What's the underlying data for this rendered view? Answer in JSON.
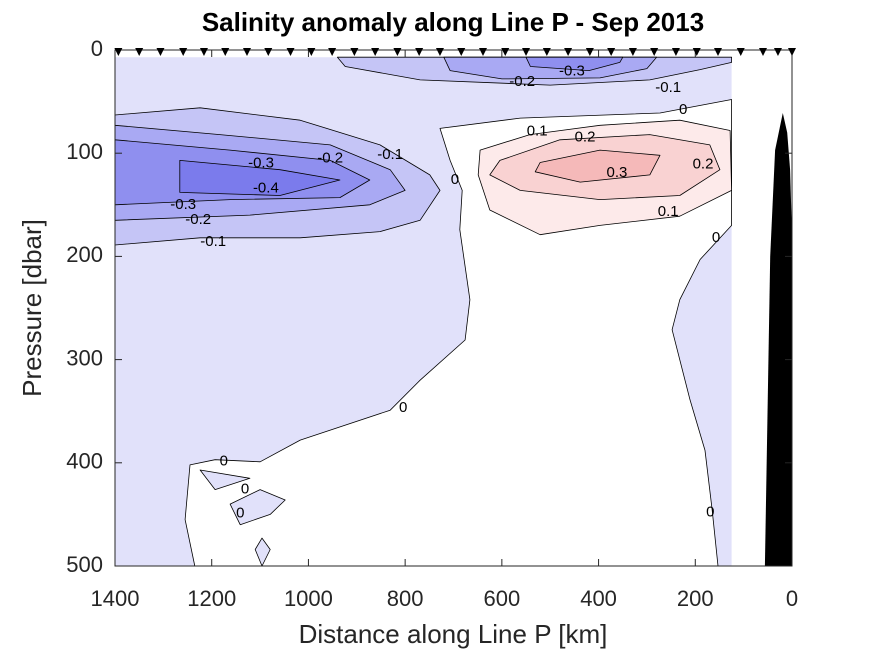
{
  "chart_data": {
    "type": "contour",
    "title": "Salinity anomaly along Line P - Sep 2013",
    "xlabel": "Distance along Line P [km]",
    "ylabel": "Pressure [dbar]",
    "xlim": [
      0,
      1400
    ],
    "x_reversed": true,
    "xticks": [
      0,
      200,
      400,
      600,
      800,
      1000,
      1200,
      1400
    ],
    "ylim": [
      0,
      500
    ],
    "y_reversed": true,
    "yticks": [
      0,
      100,
      200,
      300,
      400,
      500
    ],
    "levels": [
      -0.5,
      -0.4,
      -0.3,
      -0.2,
      -0.1,
      0,
      0.1,
      0.2,
      0.3
    ],
    "level_colors": [
      "#7b7bec",
      "#8f8fef",
      "#a9a9f3",
      "#c5c5f6",
      "#e1e1fa",
      "#ffffff",
      "#fdeaea",
      "#f9d2d2",
      "#f5b9b9"
    ],
    "regions": [
      {
        "level": -0.1,
        "x": [
          1400,
          125,
          125,
          1400
        ],
        "y": [
          7,
          7,
          500,
          500
        ]
      },
      {
        "level": 0,
        "x": [
          728,
          562,
          273,
          125,
          125,
          190,
          232,
          248,
          211,
          180,
          165,
          153,
          1235,
          1255,
          1245,
          1193,
          1100,
          1017,
          831,
          769,
          676,
          666,
          687,
          682,
          707
        ],
        "y": [
          76,
          66,
          61,
          48,
          170,
          203,
          242,
          271,
          339,
          388,
          446,
          500,
          500,
          455,
          402,
          397,
          399,
          378,
          349,
          320,
          281,
          242,
          174,
          136,
          107
        ]
      },
      {
        "level": -0.1,
        "x": [
          1100,
          1048,
          1079,
          1141,
          1162
        ],
        "y": [
          426,
          436,
          450,
          460,
          440
        ]
      },
      {
        "level": -0.1,
        "x": [
          1096,
          1079,
          1096,
          1110
        ],
        "y": [
          473,
          484,
          500,
          484
        ]
      },
      {
        "level": -0.1,
        "x": [
          1224,
          1121,
          1193
        ],
        "y": [
          407,
          415,
          426
        ]
      },
      {
        "level": -0.2,
        "x": [
          940,
          924,
          769,
          500,
          294,
          190,
          125,
          125
        ],
        "y": [
          7,
          16,
          29,
          34,
          29,
          19,
          12,
          7
        ]
      },
      {
        "level": -0.3,
        "x": [
          720,
          707,
          600,
          397,
          300,
          280
        ],
        "y": [
          7,
          20,
          28,
          27,
          18,
          7
        ]
      },
      {
        "level": -0.4,
        "x": [
          550,
          541,
          420,
          356,
          350
        ],
        "y": [
          7,
          16,
          20,
          12,
          7
        ]
      },
      {
        "level": -0.2,
        "x": [
          1400,
          1224,
          1017,
          852,
          749,
          728,
          769,
          852,
          1017,
          1224,
          1400
        ],
        "y": [
          63,
          56,
          68,
          92,
          121,
          136,
          165,
          176,
          182,
          182,
          189
        ]
      },
      {
        "level": -0.3,
        "x": [
          1400,
          1183,
          955,
          831,
          800,
          873,
          1121,
          1400
        ],
        "y": [
          73,
          82,
          92,
          116,
          136,
          150,
          160,
          165
        ]
      },
      {
        "level": -0.4,
        "x": [
          1400,
          1162,
          955,
          873,
          935,
          1162,
          1400
        ],
        "y": [
          87,
          97,
          107,
          126,
          143,
          145,
          150
        ]
      },
      {
        "level": -0.5,
        "x": [
          1266,
          1059,
          935,
          1059,
          1266
        ],
        "y": [
          107,
          116,
          126,
          141,
          138
        ]
      },
      {
        "level": 0.1,
        "x": [
          645,
          542,
          397,
          232,
          128,
          125,
          232,
          397,
          521,
          625,
          649
        ],
        "y": [
          97,
          82,
          73,
          68,
          78,
          136,
          161,
          170,
          179,
          155,
          121
        ]
      },
      {
        "level": 0.2,
        "x": [
          604,
          480,
          294,
          170,
          149,
          232,
          397,
          562,
          625
        ],
        "y": [
          107,
          87,
          82,
          92,
          116,
          141,
          145,
          136,
          121
        ]
      },
      {
        "level": 0.3,
        "x": [
          521,
          397,
          273,
          294,
          438,
          531
        ],
        "y": [
          109,
          97,
          102,
          121,
          128,
          118
        ]
      }
    ],
    "contour_labels": [
      {
        "level": -0.3,
        "x": 455,
        "y": 21
      },
      {
        "level": -0.2,
        "x": 558,
        "y": 31
      },
      {
        "level": -0.1,
        "x": 256,
        "y": 37
      },
      {
        "level": 0,
        "x": 225,
        "y": 58
      },
      {
        "level": 0.1,
        "x": 527,
        "y": 79
      },
      {
        "level": 0.2,
        "x": 428,
        "y": 85
      },
      {
        "level": 0.3,
        "x": 362,
        "y": 119
      },
      {
        "level": 0.2,
        "x": 184,
        "y": 111
      },
      {
        "level": 0.1,
        "x": 256,
        "y": 157
      },
      {
        "level": 0,
        "x": 157,
        "y": 182
      },
      {
        "level": 0,
        "x": 169,
        "y": 448
      },
      {
        "level": -0.3,
        "x": 1098,
        "y": 110
      },
      {
        "level": -0.2,
        "x": 955,
        "y": 105
      },
      {
        "level": -0.1,
        "x": 831,
        "y": 102
      },
      {
        "level": -0.4,
        "x": 1088,
        "y": 134
      },
      {
        "level": -0.3,
        "x": 1259,
        "y": 150
      },
      {
        "level": -0.2,
        "x": 1228,
        "y": 165
      },
      {
        "level": -0.1,
        "x": 1197,
        "y": 186
      },
      {
        "level": 0,
        "x": 697,
        "y": 126
      },
      {
        "level": 0,
        "x": 804,
        "y": 347
      },
      {
        "level": 0,
        "x": 1175,
        "y": 399
      },
      {
        "level": 0,
        "x": 1131,
        "y": 426
      },
      {
        "level": 0,
        "x": 1141,
        "y": 449
      }
    ],
    "stations": [
      1393,
      1350,
      1306,
      1259,
      1216,
      1172,
      1127,
      1083,
      1037,
      994,
      951,
      905,
      862,
      816,
      771,
      728,
      684,
      639,
      593,
      550,
      507,
      463,
      418,
      374,
      329,
      285,
      240,
      197,
      153,
      106,
      60,
      29,
      0
    ],
    "bathymetry": {
      "x": [
        56,
        45,
        35,
        19,
        10,
        4,
        0,
        0
      ],
      "y": [
        500,
        200,
        97,
        61,
        80,
        116,
        180,
        500
      ],
      "color": "#000000"
    }
  }
}
